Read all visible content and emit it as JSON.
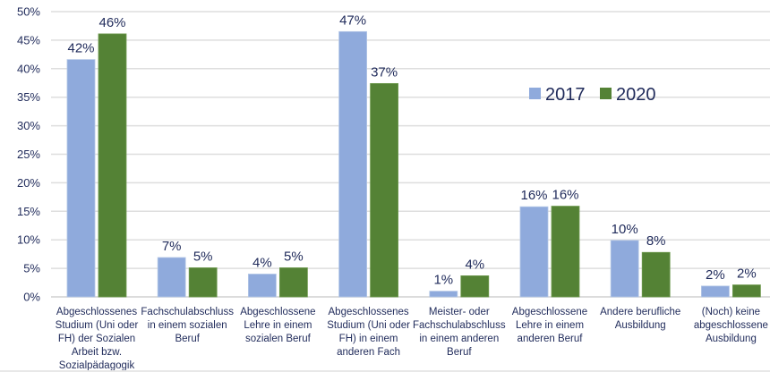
{
  "chart_data": {
    "type": "bar",
    "title": "",
    "xlabel": "",
    "ylabel": "",
    "ylim": [
      0,
      50
    ],
    "ytick_step": 5,
    "ytick_format": "percent",
    "grid": true,
    "legend_position": "top-right",
    "categories": [
      [
        "Abgeschlossenes",
        "Studium (Uni oder",
        "FH) der Sozialen",
        "Arbeit bzw.",
        "Sozialpädagogik"
      ],
      [
        "Fachschulabschluss",
        "in einem sozialen",
        "Beruf"
      ],
      [
        "Abgeschlossene",
        "Lehre in einem",
        "sozialen Beruf"
      ],
      [
        "Abgeschlossenes",
        "Studium (Uni oder",
        "FH) in einem",
        "anderen Fach"
      ],
      [
        "Meister- oder",
        "Fachschulabschluss",
        "in einem anderen",
        "Beruf"
      ],
      [
        "Abgeschlossene",
        "Lehre in einem",
        "anderen Beruf"
      ],
      [
        "Andere berufliche",
        "Ausbildung"
      ],
      [
        "(Noch) keine",
        "abgeschlossene",
        "Ausbildung"
      ]
    ],
    "series": [
      {
        "name": "2017",
        "color": "#8faadc",
        "values": [
          41.6,
          6.9,
          4.0,
          46.5,
          1.0,
          15.8,
          9.9,
          1.9
        ],
        "labels": [
          "42%",
          "7%",
          "4%",
          "47%",
          "1%",
          "16%",
          "10%",
          "2%"
        ]
      },
      {
        "name": "2020",
        "color": "#548235",
        "values": [
          46.1,
          5.1,
          5.1,
          37.4,
          3.7,
          15.9,
          7.8,
          2.1
        ],
        "labels": [
          "46%",
          "5%",
          "5%",
          "37%",
          "4%",
          "16%",
          "8%",
          "2%"
        ]
      }
    ],
    "yticks": [
      "0%",
      "5%",
      "10%",
      "15%",
      "20%",
      "25%",
      "30%",
      "35%",
      "40%",
      "45%",
      "50%"
    ]
  }
}
